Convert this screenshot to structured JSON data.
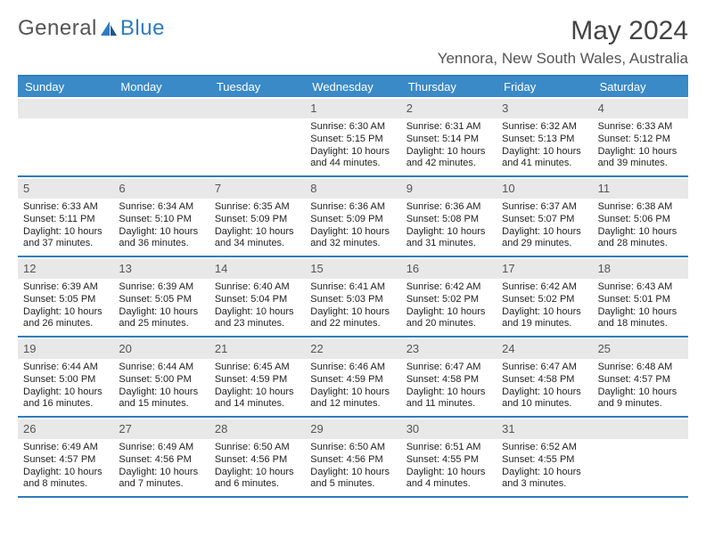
{
  "brand": {
    "general": "General",
    "blue": "Blue"
  },
  "title": "May 2024",
  "location": "Yennora, New South Wales, Australia",
  "colors": {
    "header_bg": "#3a8ac7",
    "border": "#2e7cc0",
    "daynum_bg": "#e8e8e8",
    "text": "#333333"
  },
  "dayHeaders": [
    "Sunday",
    "Monday",
    "Tuesday",
    "Wednesday",
    "Thursday",
    "Friday",
    "Saturday"
  ],
  "weeks": [
    [
      {
        "day": "",
        "lines": []
      },
      {
        "day": "",
        "lines": []
      },
      {
        "day": "",
        "lines": []
      },
      {
        "day": "1",
        "lines": [
          "Sunrise: 6:30 AM",
          "Sunset: 5:15 PM",
          "Daylight: 10 hours",
          "and 44 minutes."
        ]
      },
      {
        "day": "2",
        "lines": [
          "Sunrise: 6:31 AM",
          "Sunset: 5:14 PM",
          "Daylight: 10 hours",
          "and 42 minutes."
        ]
      },
      {
        "day": "3",
        "lines": [
          "Sunrise: 6:32 AM",
          "Sunset: 5:13 PM",
          "Daylight: 10 hours",
          "and 41 minutes."
        ]
      },
      {
        "day": "4",
        "lines": [
          "Sunrise: 6:33 AM",
          "Sunset: 5:12 PM",
          "Daylight: 10 hours",
          "and 39 minutes."
        ]
      }
    ],
    [
      {
        "day": "5",
        "lines": [
          "Sunrise: 6:33 AM",
          "Sunset: 5:11 PM",
          "Daylight: 10 hours",
          "and 37 minutes."
        ]
      },
      {
        "day": "6",
        "lines": [
          "Sunrise: 6:34 AM",
          "Sunset: 5:10 PM",
          "Daylight: 10 hours",
          "and 36 minutes."
        ]
      },
      {
        "day": "7",
        "lines": [
          "Sunrise: 6:35 AM",
          "Sunset: 5:09 PM",
          "Daylight: 10 hours",
          "and 34 minutes."
        ]
      },
      {
        "day": "8",
        "lines": [
          "Sunrise: 6:36 AM",
          "Sunset: 5:09 PM",
          "Daylight: 10 hours",
          "and 32 minutes."
        ]
      },
      {
        "day": "9",
        "lines": [
          "Sunrise: 6:36 AM",
          "Sunset: 5:08 PM",
          "Daylight: 10 hours",
          "and 31 minutes."
        ]
      },
      {
        "day": "10",
        "lines": [
          "Sunrise: 6:37 AM",
          "Sunset: 5:07 PM",
          "Daylight: 10 hours",
          "and 29 minutes."
        ]
      },
      {
        "day": "11",
        "lines": [
          "Sunrise: 6:38 AM",
          "Sunset: 5:06 PM",
          "Daylight: 10 hours",
          "and 28 minutes."
        ]
      }
    ],
    [
      {
        "day": "12",
        "lines": [
          "Sunrise: 6:39 AM",
          "Sunset: 5:05 PM",
          "Daylight: 10 hours",
          "and 26 minutes."
        ]
      },
      {
        "day": "13",
        "lines": [
          "Sunrise: 6:39 AM",
          "Sunset: 5:05 PM",
          "Daylight: 10 hours",
          "and 25 minutes."
        ]
      },
      {
        "day": "14",
        "lines": [
          "Sunrise: 6:40 AM",
          "Sunset: 5:04 PM",
          "Daylight: 10 hours",
          "and 23 minutes."
        ]
      },
      {
        "day": "15",
        "lines": [
          "Sunrise: 6:41 AM",
          "Sunset: 5:03 PM",
          "Daylight: 10 hours",
          "and 22 minutes."
        ]
      },
      {
        "day": "16",
        "lines": [
          "Sunrise: 6:42 AM",
          "Sunset: 5:02 PM",
          "Daylight: 10 hours",
          "and 20 minutes."
        ]
      },
      {
        "day": "17",
        "lines": [
          "Sunrise: 6:42 AM",
          "Sunset: 5:02 PM",
          "Daylight: 10 hours",
          "and 19 minutes."
        ]
      },
      {
        "day": "18",
        "lines": [
          "Sunrise: 6:43 AM",
          "Sunset: 5:01 PM",
          "Daylight: 10 hours",
          "and 18 minutes."
        ]
      }
    ],
    [
      {
        "day": "19",
        "lines": [
          "Sunrise: 6:44 AM",
          "Sunset: 5:00 PM",
          "Daylight: 10 hours",
          "and 16 minutes."
        ]
      },
      {
        "day": "20",
        "lines": [
          "Sunrise: 6:44 AM",
          "Sunset: 5:00 PM",
          "Daylight: 10 hours",
          "and 15 minutes."
        ]
      },
      {
        "day": "21",
        "lines": [
          "Sunrise: 6:45 AM",
          "Sunset: 4:59 PM",
          "Daylight: 10 hours",
          "and 14 minutes."
        ]
      },
      {
        "day": "22",
        "lines": [
          "Sunrise: 6:46 AM",
          "Sunset: 4:59 PM",
          "Daylight: 10 hours",
          "and 12 minutes."
        ]
      },
      {
        "day": "23",
        "lines": [
          "Sunrise: 6:47 AM",
          "Sunset: 4:58 PM",
          "Daylight: 10 hours",
          "and 11 minutes."
        ]
      },
      {
        "day": "24",
        "lines": [
          "Sunrise: 6:47 AM",
          "Sunset: 4:58 PM",
          "Daylight: 10 hours",
          "and 10 minutes."
        ]
      },
      {
        "day": "25",
        "lines": [
          "Sunrise: 6:48 AM",
          "Sunset: 4:57 PM",
          "Daylight: 10 hours",
          "and 9 minutes."
        ]
      }
    ],
    [
      {
        "day": "26",
        "lines": [
          "Sunrise: 6:49 AM",
          "Sunset: 4:57 PM",
          "Daylight: 10 hours",
          "and 8 minutes."
        ]
      },
      {
        "day": "27",
        "lines": [
          "Sunrise: 6:49 AM",
          "Sunset: 4:56 PM",
          "Daylight: 10 hours",
          "and 7 minutes."
        ]
      },
      {
        "day": "28",
        "lines": [
          "Sunrise: 6:50 AM",
          "Sunset: 4:56 PM",
          "Daylight: 10 hours",
          "and 6 minutes."
        ]
      },
      {
        "day": "29",
        "lines": [
          "Sunrise: 6:50 AM",
          "Sunset: 4:56 PM",
          "Daylight: 10 hours",
          "and 5 minutes."
        ]
      },
      {
        "day": "30",
        "lines": [
          "Sunrise: 6:51 AM",
          "Sunset: 4:55 PM",
          "Daylight: 10 hours",
          "and 4 minutes."
        ]
      },
      {
        "day": "31",
        "lines": [
          "Sunrise: 6:52 AM",
          "Sunset: 4:55 PM",
          "Daylight: 10 hours",
          "and 3 minutes."
        ]
      },
      {
        "day": "",
        "lines": []
      }
    ]
  ]
}
